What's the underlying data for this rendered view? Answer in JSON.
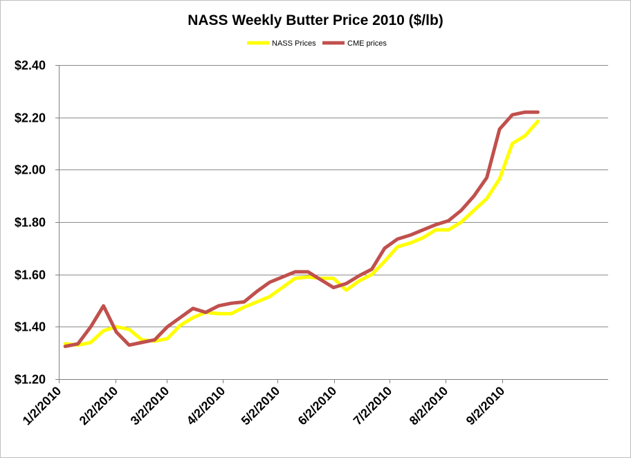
{
  "chart_data": {
    "type": "line",
    "title": "NASS Weekly Butter Price 2010 ($/lb)",
    "xlabel": "",
    "ylabel": "",
    "ylim": [
      1.2,
      2.4
    ],
    "yticks": [
      "$1.20",
      "$1.40",
      "$1.60",
      "$1.80",
      "$2.00",
      "$2.20",
      "$2.40"
    ],
    "ytick_values": [
      1.2,
      1.4,
      1.6,
      1.8,
      2.0,
      2.2,
      2.4
    ],
    "xtick_labels": [
      "1/2/2010",
      "2/2/2010",
      "3/2/2010",
      "4/2/2010",
      "5/2/2010",
      "6/2/2010",
      "7/2/2010",
      "8/2/2010",
      "9/2/2010"
    ],
    "x_weeks": 43,
    "legend_position": "top-center",
    "grid": true,
    "series": [
      {
        "name": "NASS Prices",
        "color": "#ffff00",
        "values": [
          1.335,
          1.33,
          1.34,
          1.385,
          1.4,
          1.39,
          1.35,
          1.345,
          1.355,
          1.405,
          1.435,
          1.455,
          1.45,
          1.45,
          1.475,
          1.495,
          1.515,
          1.55,
          1.585,
          1.59,
          1.585,
          1.585,
          1.54,
          1.575,
          1.6,
          1.65,
          1.705,
          1.72,
          1.74,
          1.77,
          1.77,
          1.8,
          1.845,
          1.89,
          1.965,
          2.1,
          2.13,
          2.185
        ]
      },
      {
        "name": "CME prices",
        "color": "#c0504d",
        "values": [
          1.325,
          1.335,
          1.4,
          1.48,
          1.38,
          1.33,
          1.34,
          1.35,
          1.4,
          1.435,
          1.47,
          1.455,
          1.48,
          1.49,
          1.495,
          1.535,
          1.57,
          1.59,
          1.61,
          1.61,
          1.58,
          1.55,
          1.565,
          1.595,
          1.62,
          1.7,
          1.735,
          1.75,
          1.77,
          1.79,
          1.805,
          1.845,
          1.9,
          1.97,
          2.155,
          2.21,
          2.22,
          2.22
        ]
      }
    ]
  }
}
